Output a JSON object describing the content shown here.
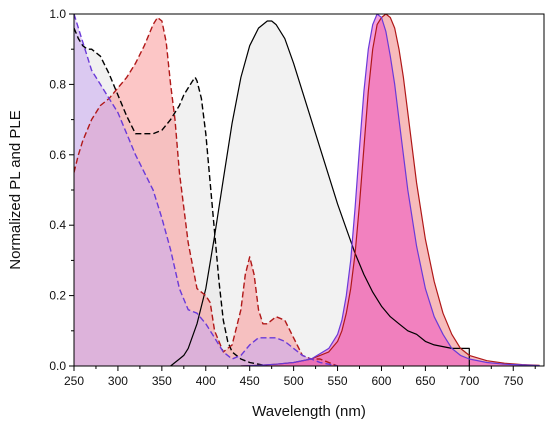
{
  "chart_data": {
    "type": "area",
    "title": "",
    "xlabel": "Wavelength (nm)",
    "ylabel": "Normalized PL and PLE",
    "xlim": [
      250,
      785
    ],
    "ylim": [
      0,
      1.0
    ],
    "xticks": [
      "250",
      "300",
      "350",
      "400",
      "450",
      "500",
      "550",
      "600",
      "650",
      "700",
      "750"
    ],
    "yticks": [
      "0.0",
      "0.2",
      "0.4",
      "0.6",
      "0.8",
      "1.0"
    ],
    "grid": false,
    "legend": "none",
    "series": [
      {
        "style": "dashed-black-ple",
        "line": "#000000",
        "fill": "#e8e8e8",
        "fill_opacity": 0.6,
        "dash": true,
        "x": [
          250,
          255,
          260,
          265,
          270,
          280,
          290,
          300,
          310,
          320,
          330,
          340,
          350,
          360,
          370,
          375,
          380,
          385,
          388,
          390,
          395,
          400,
          405,
          410,
          415,
          420,
          425,
          430,
          440,
          450,
          460,
          470
        ],
        "y": [
          0.96,
          0.93,
          0.91,
          0.9,
          0.9,
          0.88,
          0.83,
          0.77,
          0.71,
          0.66,
          0.66,
          0.66,
          0.67,
          0.7,
          0.74,
          0.77,
          0.79,
          0.81,
          0.82,
          0.81,
          0.76,
          0.66,
          0.52,
          0.38,
          0.24,
          0.13,
          0.07,
          0.04,
          0.02,
          0.01,
          0.005,
          0.0
        ]
      },
      {
        "style": "solid-black-pl",
        "line": "#000000",
        "fill": "#e8e8e8",
        "fill_opacity": 0.55,
        "dash": false,
        "x": [
          360,
          365,
          370,
          375,
          380,
          390,
          400,
          410,
          420,
          430,
          440,
          450,
          460,
          470,
          475,
          480,
          490,
          500,
          510,
          520,
          530,
          540,
          550,
          560,
          570,
          580,
          590,
          600,
          610,
          620,
          630,
          640,
          650,
          660,
          670,
          680,
          690,
          700,
          700
        ],
        "y": [
          0.0,
          0.01,
          0.02,
          0.03,
          0.05,
          0.12,
          0.22,
          0.37,
          0.53,
          0.69,
          0.82,
          0.91,
          0.96,
          0.98,
          0.98,
          0.97,
          0.93,
          0.86,
          0.78,
          0.7,
          0.62,
          0.54,
          0.46,
          0.39,
          0.32,
          0.26,
          0.21,
          0.17,
          0.14,
          0.12,
          0.1,
          0.09,
          0.07,
          0.06,
          0.055,
          0.05,
          0.05,
          0.05,
          0.0
        ]
      },
      {
        "style": "dashed-red-ple",
        "line": "#b01818",
        "fill": "#fa9898",
        "fill_opacity": 0.55,
        "dash": true,
        "x": [
          250,
          255,
          260,
          270,
          280,
          290,
          300,
          310,
          320,
          330,
          340,
          345,
          350,
          355,
          360,
          365,
          370,
          380,
          390,
          400,
          405,
          410,
          420,
          430,
          440,
          445,
          450,
          455,
          460,
          465,
          470,
          480,
          490,
          500,
          510,
          520,
          530,
          540,
          550
        ],
        "y": [
          0.55,
          0.6,
          0.64,
          0.7,
          0.74,
          0.76,
          0.79,
          0.82,
          0.86,
          0.91,
          0.97,
          0.99,
          0.98,
          0.92,
          0.8,
          0.7,
          0.55,
          0.35,
          0.22,
          0.2,
          0.18,
          0.1,
          0.04,
          0.06,
          0.16,
          0.26,
          0.31,
          0.26,
          0.16,
          0.12,
          0.12,
          0.14,
          0.13,
          0.08,
          0.03,
          0.02,
          0.02,
          0.01,
          0.0
        ]
      },
      {
        "style": "dashed-purple-ple",
        "line": "#6a3ad8",
        "fill": "#c9a8f0",
        "fill_opacity": 0.55,
        "dash": true,
        "x": [
          250,
          255,
          260,
          265,
          270,
          280,
          290,
          300,
          310,
          320,
          330,
          340,
          350,
          360,
          370,
          380,
          390,
          400,
          410,
          420,
          430,
          440,
          450,
          460,
          470,
          480,
          490,
          500,
          510,
          520,
          530,
          540,
          550
        ],
        "y": [
          1.0,
          0.96,
          0.92,
          0.88,
          0.84,
          0.8,
          0.76,
          0.72,
          0.66,
          0.6,
          0.55,
          0.5,
          0.42,
          0.33,
          0.22,
          0.16,
          0.15,
          0.12,
          0.08,
          0.04,
          0.02,
          0.03,
          0.06,
          0.08,
          0.08,
          0.08,
          0.07,
          0.05,
          0.03,
          0.02,
          0.01,
          0.005,
          0.0
        ]
      },
      {
        "style": "solid-red-pl",
        "line": "#b01818",
        "fill": "#f07878",
        "fill_opacity": 0.5,
        "dash": false,
        "x": [
          440,
          460,
          480,
          500,
          520,
          540,
          550,
          555,
          560,
          565,
          570,
          575,
          580,
          585,
          590,
          595,
          600,
          605,
          610,
          615,
          620,
          625,
          630,
          640,
          650,
          660,
          670,
          680,
          690,
          700,
          720,
          740,
          760,
          780
        ],
        "y": [
          0.0,
          0.002,
          0.005,
          0.01,
          0.02,
          0.04,
          0.07,
          0.1,
          0.15,
          0.22,
          0.32,
          0.46,
          0.62,
          0.78,
          0.9,
          0.97,
          0.99,
          1.0,
          0.99,
          0.96,
          0.9,
          0.82,
          0.72,
          0.52,
          0.36,
          0.24,
          0.15,
          0.09,
          0.05,
          0.03,
          0.015,
          0.008,
          0.004,
          0.002
        ]
      },
      {
        "style": "solid-purple-pl",
        "line": "#6a3ad8",
        "fill": "#ee52c2",
        "fill_opacity": 0.55,
        "dash": false,
        "x": [
          440,
          460,
          480,
          500,
          520,
          540,
          550,
          555,
          560,
          565,
          570,
          575,
          580,
          585,
          590,
          595,
          600,
          605,
          610,
          615,
          620,
          625,
          630,
          640,
          650,
          660,
          670,
          680,
          690,
          700,
          720,
          740,
          760,
          780
        ],
        "y": [
          0.0,
          0.002,
          0.005,
          0.01,
          0.02,
          0.05,
          0.09,
          0.13,
          0.2,
          0.3,
          0.45,
          0.62,
          0.78,
          0.9,
          0.97,
          1.0,
          0.99,
          0.95,
          0.88,
          0.8,
          0.7,
          0.6,
          0.5,
          0.34,
          0.22,
          0.14,
          0.09,
          0.05,
          0.03,
          0.02,
          0.01,
          0.005,
          0.003,
          0.001
        ]
      }
    ]
  }
}
